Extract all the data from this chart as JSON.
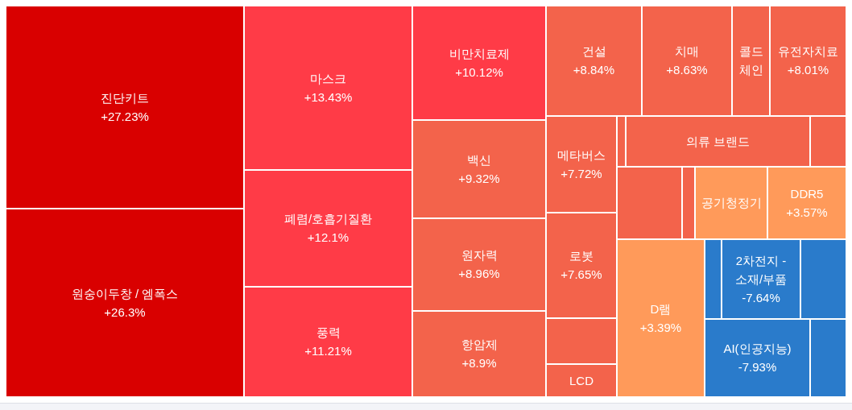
{
  "chart_data": {
    "type": "other",
    "categories": [
      "진단키트",
      "원숭이두창 / 엠폭스",
      "마스크",
      "폐렴/호흡기질환",
      "풍력",
      "비만치료제",
      "백신",
      "원자력",
      "항암제",
      "건설",
      "치매",
      "콜드체인",
      "유전자치료",
      "메타버스",
      null,
      "의류 브랜드",
      null,
      null,
      null,
      "공기청정기",
      "DDR5",
      "로봇",
      null,
      "LCD",
      "D램",
      null,
      "2차전지 - 소재/부품",
      null,
      "AI(인공지능)",
      null
    ],
    "values": [
      27.23,
      26.3,
      13.43,
      12.1,
      11.21,
      10.12,
      9.32,
      8.96,
      8.9,
      8.84,
      8.63,
      null,
      8.01,
      7.72,
      null,
      null,
      null,
      null,
      null,
      null,
      3.57,
      7.65,
      null,
      null,
      3.39,
      null,
      -7.64,
      null,
      -7.93,
      null
    ],
    "value_labels": [
      "+27.23%",
      "+26.3%",
      "+13.43%",
      "+12.1%",
      "+11.21%",
      "+10.12%",
      "+9.32%",
      "+8.96%",
      "+8.9%",
      "+8.84%",
      "+8.63%",
      null,
      "+8.01%",
      "+7.72%",
      null,
      null,
      null,
      null,
      null,
      null,
      "+3.57%",
      "+7.65%",
      null,
      null,
      "+3.39%",
      null,
      "-7.64%",
      null,
      "-7.93%",
      null
    ],
    "colors": [
      "#d90000",
      "#d90000",
      "#ff3b47",
      "#ff3b47",
      "#ff3b47",
      "#ff3b47",
      "#f3634b",
      "#f3634b",
      "#f3634b",
      "#f3634b",
      "#f3634b",
      "#f3634b",
      "#f3634b",
      "#f3634b",
      "#f3634b",
      "#f3634b",
      "#f3634b",
      "#f3634b",
      "#f3634b",
      "#ff9a5a",
      "#ff9a5a",
      "#f3634b",
      "#f3634b",
      "#f3634b",
      "#ff9a5a",
      "#2a7bcb",
      "#2a7bcb",
      "#2a7bcb",
      "#2a7bcb",
      "#2a7bcb"
    ]
  }
}
